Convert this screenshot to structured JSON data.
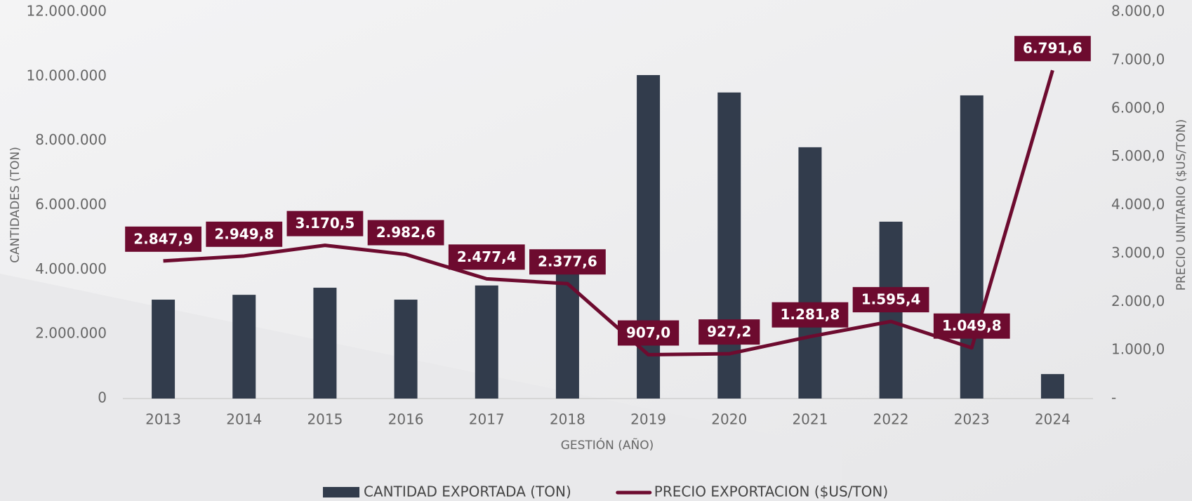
{
  "chart_data": {
    "type": "bar",
    "x_label": "GESTIÓN (AÑO)",
    "y_label": "CANTIDADES (TON)",
    "y2_label": "PRECIO UNITARIO ($US/TON)",
    "categories": [
      "2013",
      "2014",
      "2015",
      "2016",
      "2017",
      "2018",
      "2019",
      "2020",
      "2021",
      "2022",
      "2023",
      "2024"
    ],
    "series": [
      {
        "name": "CANTIDAD EXPORTADA (TON)",
        "type": "bar",
        "color": "#323c4c",
        "axis": "y",
        "values": [
          3070000,
          3220000,
          3440000,
          3070000,
          3510000,
          3900000,
          10040000,
          9500000,
          7800000,
          5490000,
          9410000,
          760000
        ]
      },
      {
        "name": "PRECIO EXPORTACION ($US/TON)",
        "type": "line",
        "color": "#6d0b2f",
        "axis": "y2",
        "values": [
          2847.9,
          2949.8,
          3170.5,
          2982.6,
          2477.4,
          2377.6,
          907.0,
          927.2,
          1281.8,
          1595.4,
          1049.8,
          6791.6
        ],
        "value_labels": [
          "2.847,9",
          "2.949,8",
          "3.170,5",
          "2.982,6",
          "2.477,4",
          "2.377,6",
          "907,0",
          "927,2",
          "1.281,8",
          "1.595,4",
          "1.049,8",
          "6.791,6"
        ]
      }
    ],
    "ylim": [
      0,
      12000000
    ],
    "yticks": [
      0,
      {
        "value": 2000000,
        "label": "2.000.000"
      },
      {
        "value": 4000000,
        "label": "4.000.000"
      },
      {
        "value": 6000000,
        "label": "6.000.000"
      },
      {
        "value": 8000000,
        "label": "8.000.000"
      },
      {
        "value": 10000000,
        "label": "10.000.000"
      },
      {
        "value": 12000000,
        "label": "12.000.000"
      }
    ],
    "y2lim": [
      0,
      8000
    ],
    "y2ticks": [
      {
        "value": 0,
        "label": "-"
      },
      {
        "value": 1000,
        "label": "1.000,0"
      },
      {
        "value": 2000,
        "label": "2.000,0"
      },
      {
        "value": 3000,
        "label": "3.000,0"
      },
      {
        "value": 4000,
        "label": "4.000,0"
      },
      {
        "value": 5000,
        "label": "5.000,0"
      },
      {
        "value": 6000,
        "label": "6.000,0"
      },
      {
        "value": 7000,
        "label": "7.000,0"
      },
      {
        "value": 8000,
        "label": "8.000,0"
      }
    ],
    "grid": false,
    "legend": "bottom"
  }
}
